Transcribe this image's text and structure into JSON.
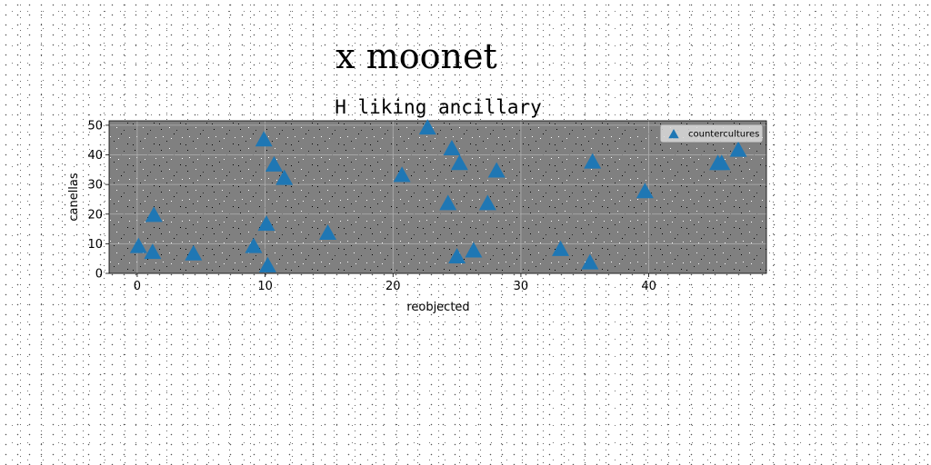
{
  "suptitle": "x moonet",
  "chart_data": {
    "type": "scatter",
    "title": "H liking ancillary",
    "xlabel": "reobjected",
    "ylabel": "canellas",
    "xlim": [
      -2.2,
      49.2
    ],
    "ylim": [
      0,
      51.5
    ],
    "xticks": [
      0,
      10,
      20,
      30,
      40
    ],
    "yticks": [
      0,
      10,
      20,
      30,
      40,
      50
    ],
    "grid": true,
    "legend": "top-right",
    "background": "#808080",
    "series": [
      {
        "name": "countercultures",
        "marker": "triangle",
        "color": "#1f77b4",
        "x": [
          0.1,
          1.2,
          1.3,
          4.4,
          9.1,
          9.9,
          10.1,
          10.2,
          10.7,
          11.5,
          14.9,
          20.7,
          22.7,
          24.3,
          24.6,
          25.0,
          25.2,
          26.3,
          27.4,
          28.1,
          33.1,
          35.4,
          35.6,
          39.7,
          45.4,
          45.7,
          47.0
        ],
        "y": [
          9.0,
          7.0,
          19.5,
          6.5,
          9.0,
          45.0,
          16.5,
          2.5,
          36.5,
          32.0,
          13.5,
          33.0,
          49.0,
          23.5,
          42.0,
          5.5,
          37.0,
          7.5,
          23.5,
          34.5,
          8.0,
          3.5,
          37.5,
          27.5,
          37.0,
          37.0,
          41.5
        ]
      }
    ]
  }
}
